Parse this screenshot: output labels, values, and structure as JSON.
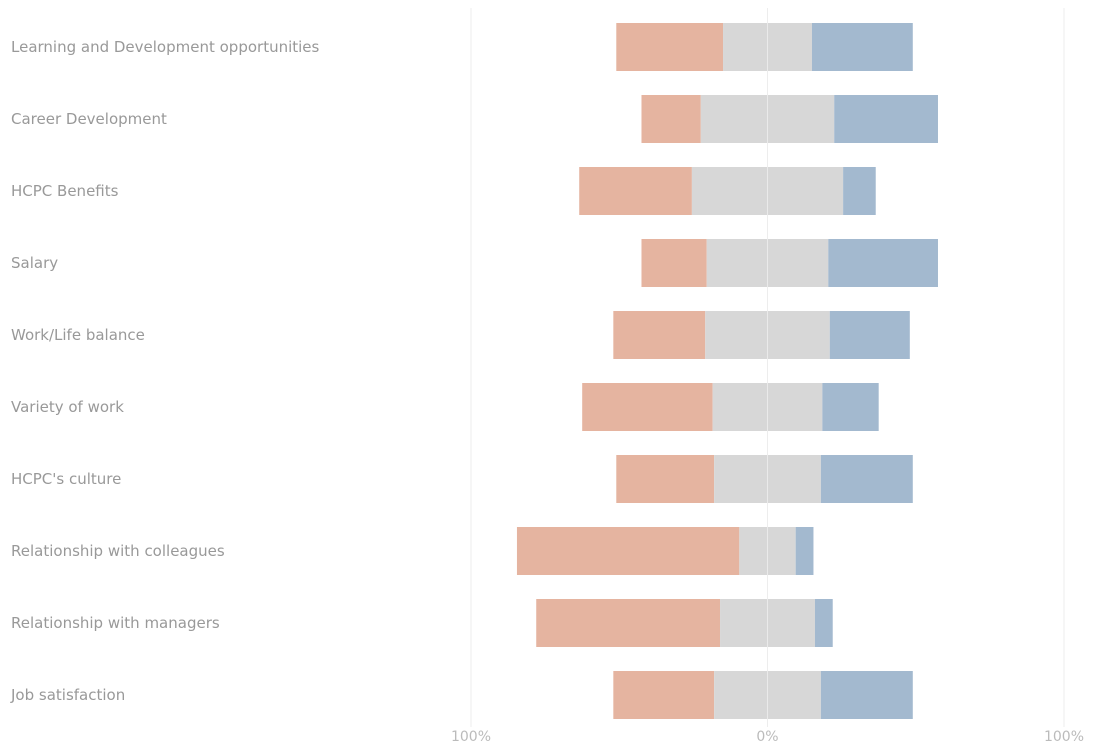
{
  "chart_data": {
    "type": "bar",
    "orientation": "horizontal",
    "stacked": "diverging",
    "categories": [
      "Learning and Development opportunities",
      "Career Development",
      "HCPC Benefits",
      "Salary",
      "Work/Life balance",
      "Variety of work",
      "HCPC's culture",
      "Relationship with colleagues",
      "Relationship with managers",
      "Job satisfaction"
    ],
    "series": [
      {
        "color": "#e5b4a0",
        "values": [
          36,
          20,
          38,
          22,
          31,
          44,
          33,
          75,
          62,
          34
        ]
      },
      {
        "color": "#d7d7d7",
        "values": [
          30,
          45,
          51,
          41,
          42,
          37,
          36,
          19,
          32,
          36
        ]
      },
      {
        "color": "#a3b9cf",
        "values": [
          34,
          35,
          11,
          37,
          27,
          19,
          31,
          6,
          6,
          31
        ]
      }
    ],
    "neutral_split": [
      15,
      22.5,
      25.5,
      20.5,
      21,
      18.5,
      18,
      9.5,
      16,
      18
    ],
    "xlim": [
      -100,
      100
    ],
    "x_ticks": [
      "100%",
      "0%",
      "100%"
    ],
    "grid": true,
    "title": "",
    "xlabel": "",
    "ylabel": ""
  }
}
